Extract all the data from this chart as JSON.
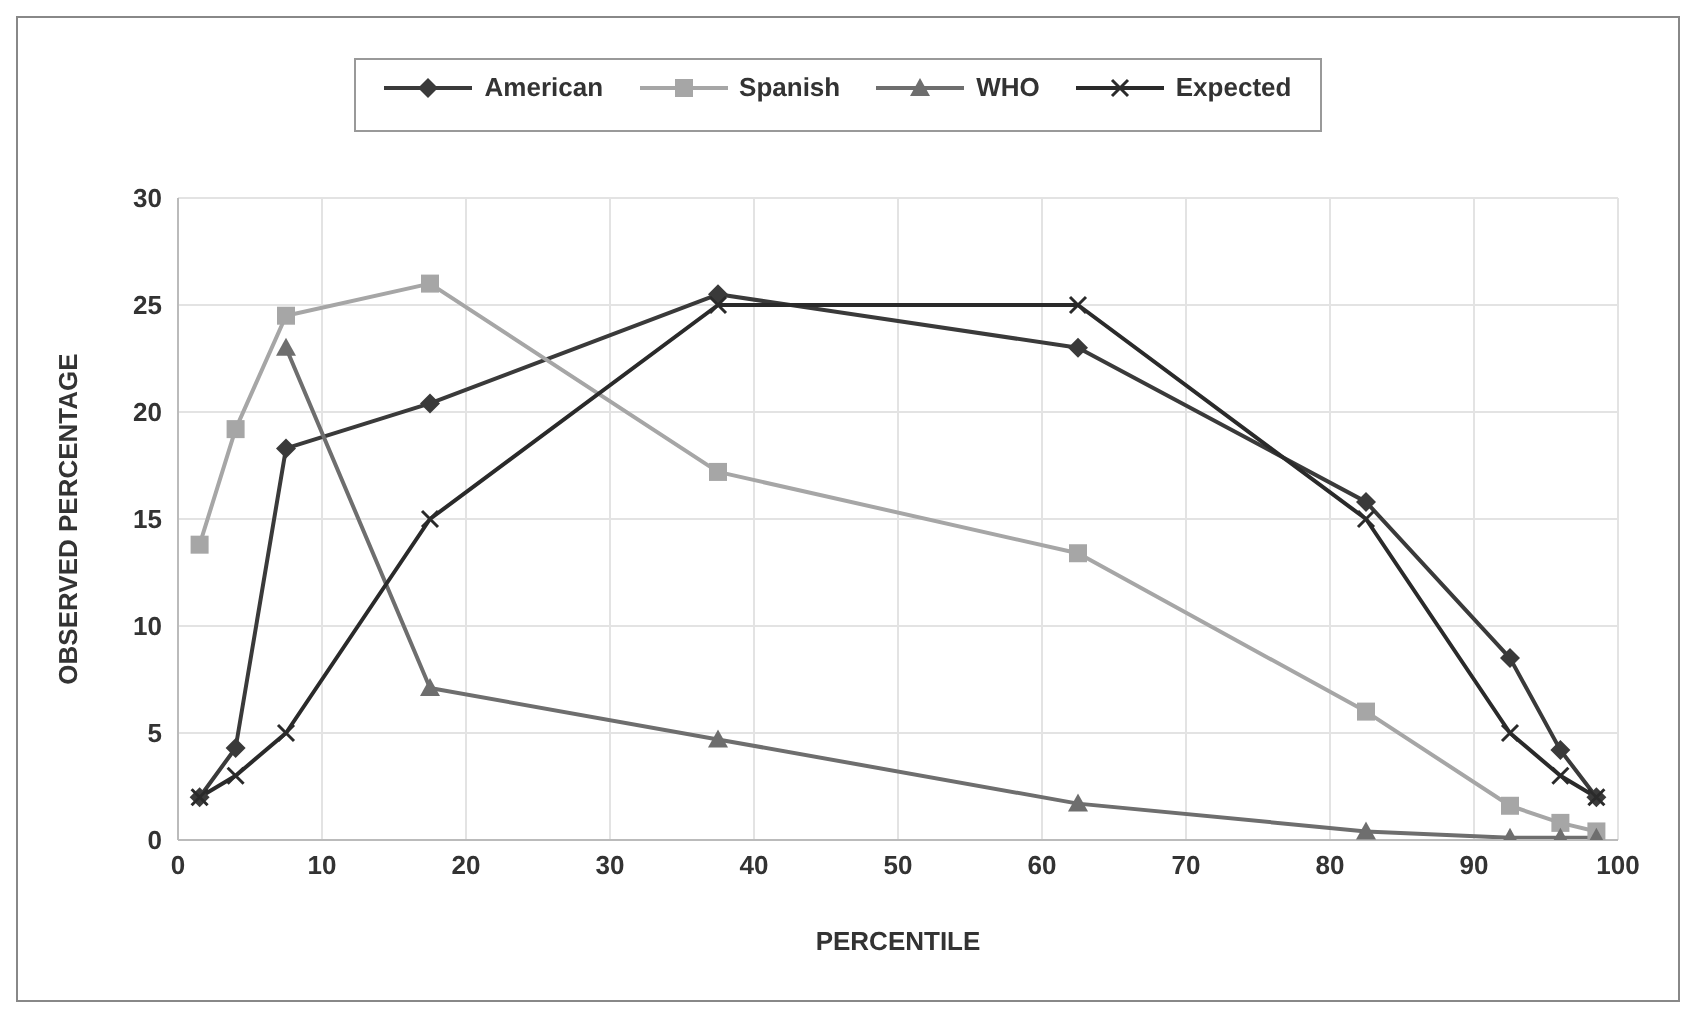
{
  "chart_data": {
    "type": "line",
    "xlabel": "PERCENTILE",
    "ylabel": "OBSERVED PERCENTAGE",
    "x": [
      1.5,
      4,
      7.5,
      17.5,
      37.5,
      62.5,
      82.5,
      92.5,
      96,
      98.5
    ],
    "series": [
      {
        "name": "American",
        "color": "#3a3a3a",
        "marker": "diamond",
        "values": [
          2,
          4.3,
          18.3,
          20.4,
          25.5,
          23,
          15.8,
          8.5,
          4.2,
          2
        ]
      },
      {
        "name": "Spanish",
        "color": "#a6a6a6",
        "marker": "square",
        "values": [
          13.8,
          19.2,
          24.5,
          26,
          17.2,
          13.4,
          6,
          1.6,
          0.8,
          0.4
        ]
      },
      {
        "name": "WHO",
        "color": "#6e6e6e",
        "marker": "triangle",
        "values": [
          null,
          null,
          23,
          7.1,
          4.7,
          1.7,
          0.4,
          0.1,
          0.1,
          0.1
        ]
      },
      {
        "name": "Expected",
        "color": "#2a2a2a",
        "marker": "cross",
        "values": [
          2,
          3,
          5,
          15,
          25,
          25,
          15,
          5,
          3,
          2
        ]
      }
    ],
    "xlim": [
      0,
      100
    ],
    "xticks": [
      0,
      10,
      20,
      30,
      40,
      50,
      60,
      70,
      80,
      90,
      100
    ],
    "ylim": [
      0,
      30
    ],
    "yticks": [
      0,
      5,
      10,
      15,
      20,
      25,
      30
    ],
    "grid": true,
    "legend": "top"
  }
}
